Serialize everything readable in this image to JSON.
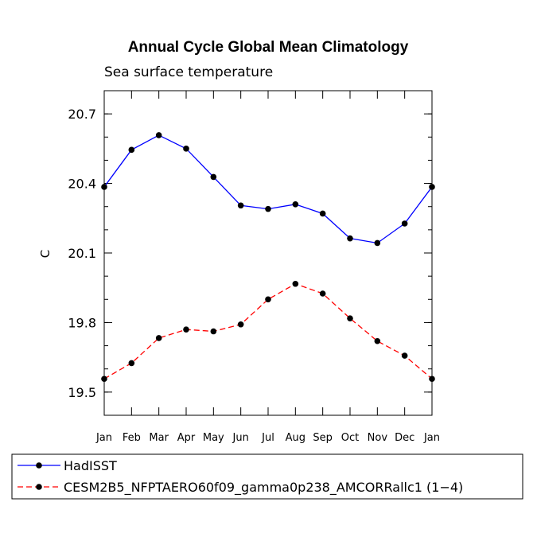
{
  "chart_data": {
    "type": "line",
    "title": "Annual Cycle Global Mean Climatology",
    "subtitle": "Sea surface temperature",
    "xlabel": "",
    "ylabel": "C",
    "categories": [
      "Jan",
      "Feb",
      "Mar",
      "Apr",
      "May",
      "Jun",
      "Jul",
      "Aug",
      "Sep",
      "Oct",
      "Nov",
      "Dec",
      "Jan"
    ],
    "ylim": [
      19.4,
      20.8
    ],
    "yticks": [
      19.5,
      19.8,
      20.1,
      20.4,
      20.7
    ],
    "ytick_labels": [
      "19.5",
      "19.8",
      "20.1",
      "20.4",
      "20.7"
    ],
    "series": [
      {
        "name": "HadISST",
        "color": "#0000ff",
        "dash": "solid",
        "values": [
          20.385,
          20.545,
          20.608,
          20.55,
          20.428,
          20.305,
          20.29,
          20.31,
          20.27,
          20.163,
          20.143,
          20.227,
          20.385
        ]
      },
      {
        "name": "CESM2B5_NFPTAERO60f09_gamma0p238_AMCORRallc1 (1−4)",
        "color": "#ff0000",
        "dash": "dashed",
        "values": [
          19.557,
          19.625,
          19.733,
          19.77,
          19.762,
          19.792,
          19.9,
          19.967,
          19.925,
          19.818,
          19.72,
          19.657,
          19.557
        ]
      }
    ],
    "legend_position": "bottom"
  }
}
